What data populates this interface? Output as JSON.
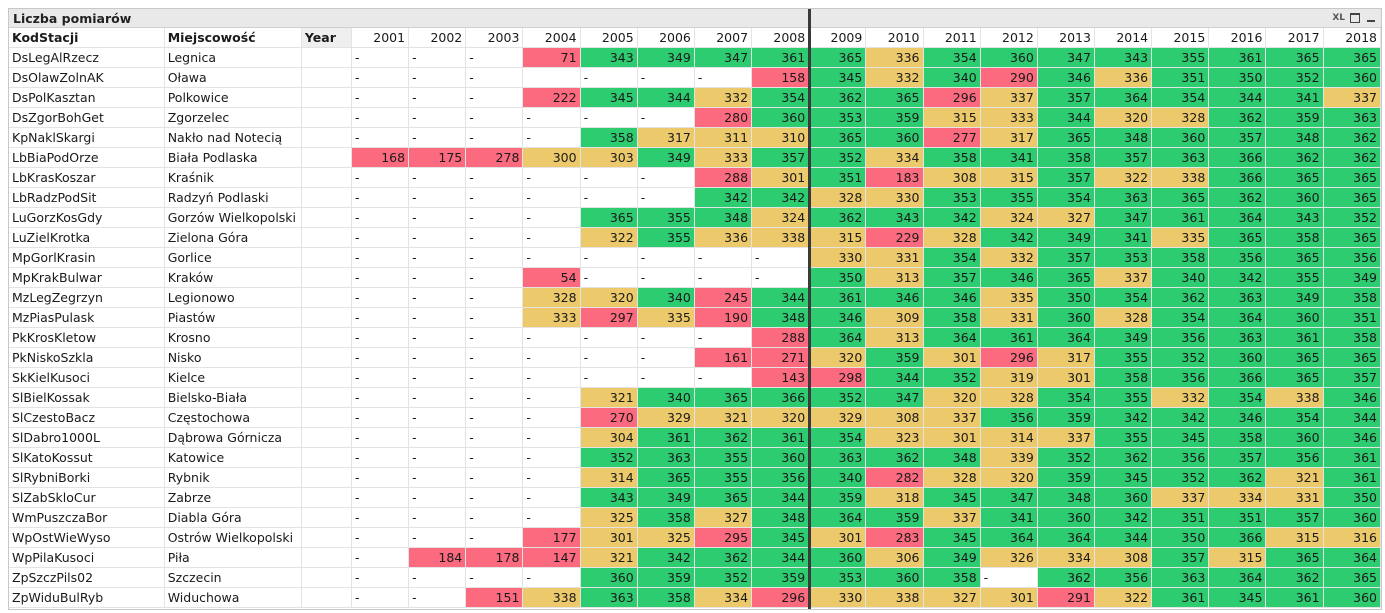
{
  "caption": {
    "title": "Liczba pomiarów",
    "icons": [
      "xl-export-icon",
      "maximize-icon",
      "minimize-icon"
    ],
    "xl_label": "XL"
  },
  "headers": {
    "station": "KodStacji",
    "city": "Miejscowość",
    "year": "Year",
    "years": [
      "2001",
      "2002",
      "2003",
      "2004",
      "2005",
      "2006",
      "2007",
      "2008",
      "2009",
      "2010",
      "2011",
      "2012",
      "2013",
      "2014",
      "2015",
      "2016",
      "2017",
      "2018"
    ]
  },
  "colors": {
    "green": "#2ecc71",
    "yellow": "#ecc96a",
    "red": "#fb6a7e"
  },
  "rows": [
    {
      "station": "DsLegAlRzecz",
      "city": "Legnica",
      "values": [
        "-",
        "-",
        "-",
        "71",
        "343",
        "349",
        "347",
        "361",
        "365",
        "336",
        "354",
        "360",
        "347",
        "343",
        "355",
        "361",
        "365",
        "365"
      ]
    },
    {
      "station": "DsOlawZolnAK",
      "city": "Oława",
      "values": [
        "-",
        "-",
        "-",
        "",
        "-",
        "-",
        "-",
        "158",
        "345",
        "332",
        "340",
        "290",
        "346",
        "336",
        "351",
        "350",
        "352",
        "360"
      ]
    },
    {
      "station": "DsPolKasztan",
      "city": "Polkowice",
      "values": [
        "-",
        "-",
        "-",
        "222",
        "345",
        "344",
        "332",
        "354",
        "362",
        "365",
        "296",
        "337",
        "357",
        "364",
        "354",
        "344",
        "341",
        "337"
      ]
    },
    {
      "station": "DsZgorBohGet",
      "city": "Zgorzelec",
      "values": [
        "-",
        "-",
        "-",
        "-",
        "-",
        "-",
        "280",
        "360",
        "353",
        "359",
        "315",
        "333",
        "344",
        "320",
        "328",
        "362",
        "359",
        "363"
      ]
    },
    {
      "station": "KpNaklSkargi",
      "city": "Nakło nad Notecią",
      "values": [
        "-",
        "-",
        "-",
        "-",
        "358",
        "317",
        "311",
        "310",
        "365",
        "360",
        "277",
        "317",
        "365",
        "348",
        "360",
        "357",
        "348",
        "362"
      ]
    },
    {
      "station": "LbBiaPodOrze",
      "city": "Biała Podlaska",
      "values": [
        "168",
        "175",
        "278",
        "300",
        "303",
        "349",
        "333",
        "357",
        "352",
        "334",
        "358",
        "341",
        "358",
        "357",
        "363",
        "366",
        "362",
        "362"
      ]
    },
    {
      "station": "LbKrasKoszar",
      "city": "Kraśnik",
      "values": [
        "-",
        "-",
        "-",
        "-",
        "-",
        "-",
        "288",
        "301",
        "351",
        "183",
        "308",
        "315",
        "357",
        "322",
        "338",
        "366",
        "365",
        "365"
      ]
    },
    {
      "station": "LbRadzPodSit",
      "city": "Radzyń Podlaski",
      "values": [
        "-",
        "-",
        "-",
        "-",
        "-",
        "-",
        "342",
        "342",
        "328",
        "330",
        "353",
        "355",
        "354",
        "363",
        "365",
        "362",
        "360",
        "365"
      ]
    },
    {
      "station": "LuGorzKosGdy",
      "city": "Gorzów Wielkopolski",
      "values": [
        "-",
        "-",
        "-",
        "-",
        "365",
        "355",
        "348",
        "324",
        "362",
        "343",
        "342",
        "324",
        "327",
        "347",
        "361",
        "364",
        "343",
        "352"
      ]
    },
    {
      "station": "LuZielKrotka",
      "city": "Zielona Góra",
      "values": [
        "-",
        "-",
        "-",
        "-",
        "322",
        "355",
        "336",
        "338",
        "315",
        "229",
        "328",
        "342",
        "349",
        "341",
        "335",
        "365",
        "358",
        "365"
      ]
    },
    {
      "station": "MpGorlKrasin",
      "city": "Gorlice",
      "values": [
        "-",
        "-",
        "-",
        "-",
        "-",
        "-",
        "-",
        "-",
        "330",
        "331",
        "354",
        "332",
        "357",
        "353",
        "358",
        "356",
        "365",
        "356"
      ]
    },
    {
      "station": "MpKrakBulwar",
      "city": "Kraków",
      "values": [
        "-",
        "-",
        "-",
        "54",
        "-",
        "-",
        "-",
        "-",
        "350",
        "313",
        "357",
        "346",
        "365",
        "337",
        "340",
        "342",
        "355",
        "349"
      ]
    },
    {
      "station": "MzLegZegrzyn",
      "city": "Legionowo",
      "values": [
        "-",
        "-",
        "-",
        "328",
        "320",
        "340",
        "245",
        "344",
        "361",
        "346",
        "346",
        "335",
        "350",
        "354",
        "362",
        "363",
        "349",
        "358"
      ]
    },
    {
      "station": "MzPiasPulask",
      "city": "Piastów",
      "values": [
        "-",
        "-",
        "-",
        "333",
        "297",
        "335",
        "190",
        "348",
        "346",
        "309",
        "358",
        "331",
        "360",
        "328",
        "354",
        "364",
        "360",
        "351"
      ]
    },
    {
      "station": "PkKrosKletow",
      "city": "Krosno",
      "values": [
        "-",
        "-",
        "-",
        "-",
        "-",
        "-",
        "-",
        "288",
        "364",
        "313",
        "364",
        "361",
        "364",
        "349",
        "356",
        "363",
        "361",
        "358"
      ]
    },
    {
      "station": "PkNiskoSzkla",
      "city": "Nisko",
      "values": [
        "-",
        "-",
        "-",
        "-",
        "-",
        "-",
        "161",
        "271",
        "320",
        "359",
        "301",
        "296",
        "317",
        "355",
        "352",
        "360",
        "365",
        "365"
      ]
    },
    {
      "station": "SkKielKusoci",
      "city": "Kielce",
      "values": [
        "-",
        "-",
        "-",
        "-",
        "-",
        "-",
        "-",
        "143",
        "298",
        "344",
        "352",
        "319",
        "301",
        "358",
        "356",
        "366",
        "365",
        "357"
      ]
    },
    {
      "station": "SlBielKossak",
      "city": "Bielsko-Biała",
      "values": [
        "-",
        "-",
        "-",
        "-",
        "321",
        "340",
        "365",
        "366",
        "352",
        "347",
        "320",
        "328",
        "354",
        "355",
        "332",
        "354",
        "338",
        "346"
      ]
    },
    {
      "station": "SlCzestoBacz",
      "city": "Częstochowa",
      "values": [
        "-",
        "-",
        "-",
        "-",
        "270",
        "329",
        "321",
        "320",
        "329",
        "308",
        "337",
        "356",
        "359",
        "342",
        "342",
        "346",
        "354",
        "344"
      ]
    },
    {
      "station": "SlDabro1000L",
      "city": "Dąbrowa Górnicza",
      "values": [
        "-",
        "-",
        "-",
        "-",
        "304",
        "361",
        "362",
        "361",
        "354",
        "323",
        "301",
        "314",
        "337",
        "355",
        "345",
        "358",
        "360",
        "346"
      ]
    },
    {
      "station": "SlKatoKossut",
      "city": "Katowice",
      "values": [
        "-",
        "-",
        "-",
        "-",
        "352",
        "363",
        "355",
        "360",
        "363",
        "362",
        "348",
        "339",
        "352",
        "362",
        "356",
        "357",
        "356",
        "361"
      ]
    },
    {
      "station": "SlRybniBorki",
      "city": "Rybnik",
      "values": [
        "-",
        "-",
        "-",
        "-",
        "314",
        "365",
        "355",
        "356",
        "340",
        "282",
        "328",
        "320",
        "359",
        "345",
        "352",
        "362",
        "321",
        "361"
      ]
    },
    {
      "station": "SlZabSkloCur",
      "city": "Zabrze",
      "values": [
        "-",
        "-",
        "-",
        "-",
        "343",
        "349",
        "365",
        "344",
        "359",
        "318",
        "345",
        "347",
        "348",
        "360",
        "337",
        "334",
        "331",
        "350"
      ]
    },
    {
      "station": "WmPuszczaBor",
      "city": "Diabla Góra",
      "values": [
        "-",
        "-",
        "-",
        "-",
        "325",
        "358",
        "327",
        "348",
        "364",
        "359",
        "337",
        "341",
        "360",
        "342",
        "351",
        "351",
        "357",
        "360"
      ]
    },
    {
      "station": "WpOstWieWyso",
      "city": "Ostrów Wielkopolski",
      "values": [
        "-",
        "-",
        "-",
        "177",
        "301",
        "325",
        "295",
        "345",
        "301",
        "283",
        "345",
        "364",
        "364",
        "344",
        "350",
        "366",
        "315",
        "316"
      ]
    },
    {
      "station": "WpPilaKusoci",
      "city": "Piła",
      "values": [
        "-",
        "184",
        "178",
        "147",
        "321",
        "342",
        "362",
        "344",
        "360",
        "306",
        "349",
        "326",
        "334",
        "308",
        "357",
        "315",
        "365",
        "364"
      ]
    },
    {
      "station": "ZpSzczPils02",
      "city": "Szczecin",
      "values": [
        "-",
        "-",
        "-",
        "-",
        "360",
        "359",
        "352",
        "359",
        "353",
        "360",
        "358",
        "-",
        "362",
        "356",
        "363",
        "364",
        "362",
        "365"
      ]
    },
    {
      "station": "ZpWiduBulRyb",
      "city": "Widuchowa",
      "values": [
        "-",
        "-",
        "151",
        "338",
        "363",
        "358",
        "334",
        "296",
        "330",
        "338",
        "327",
        "301",
        "291",
        "322",
        "361",
        "345",
        "361",
        "360"
      ]
    }
  ]
}
